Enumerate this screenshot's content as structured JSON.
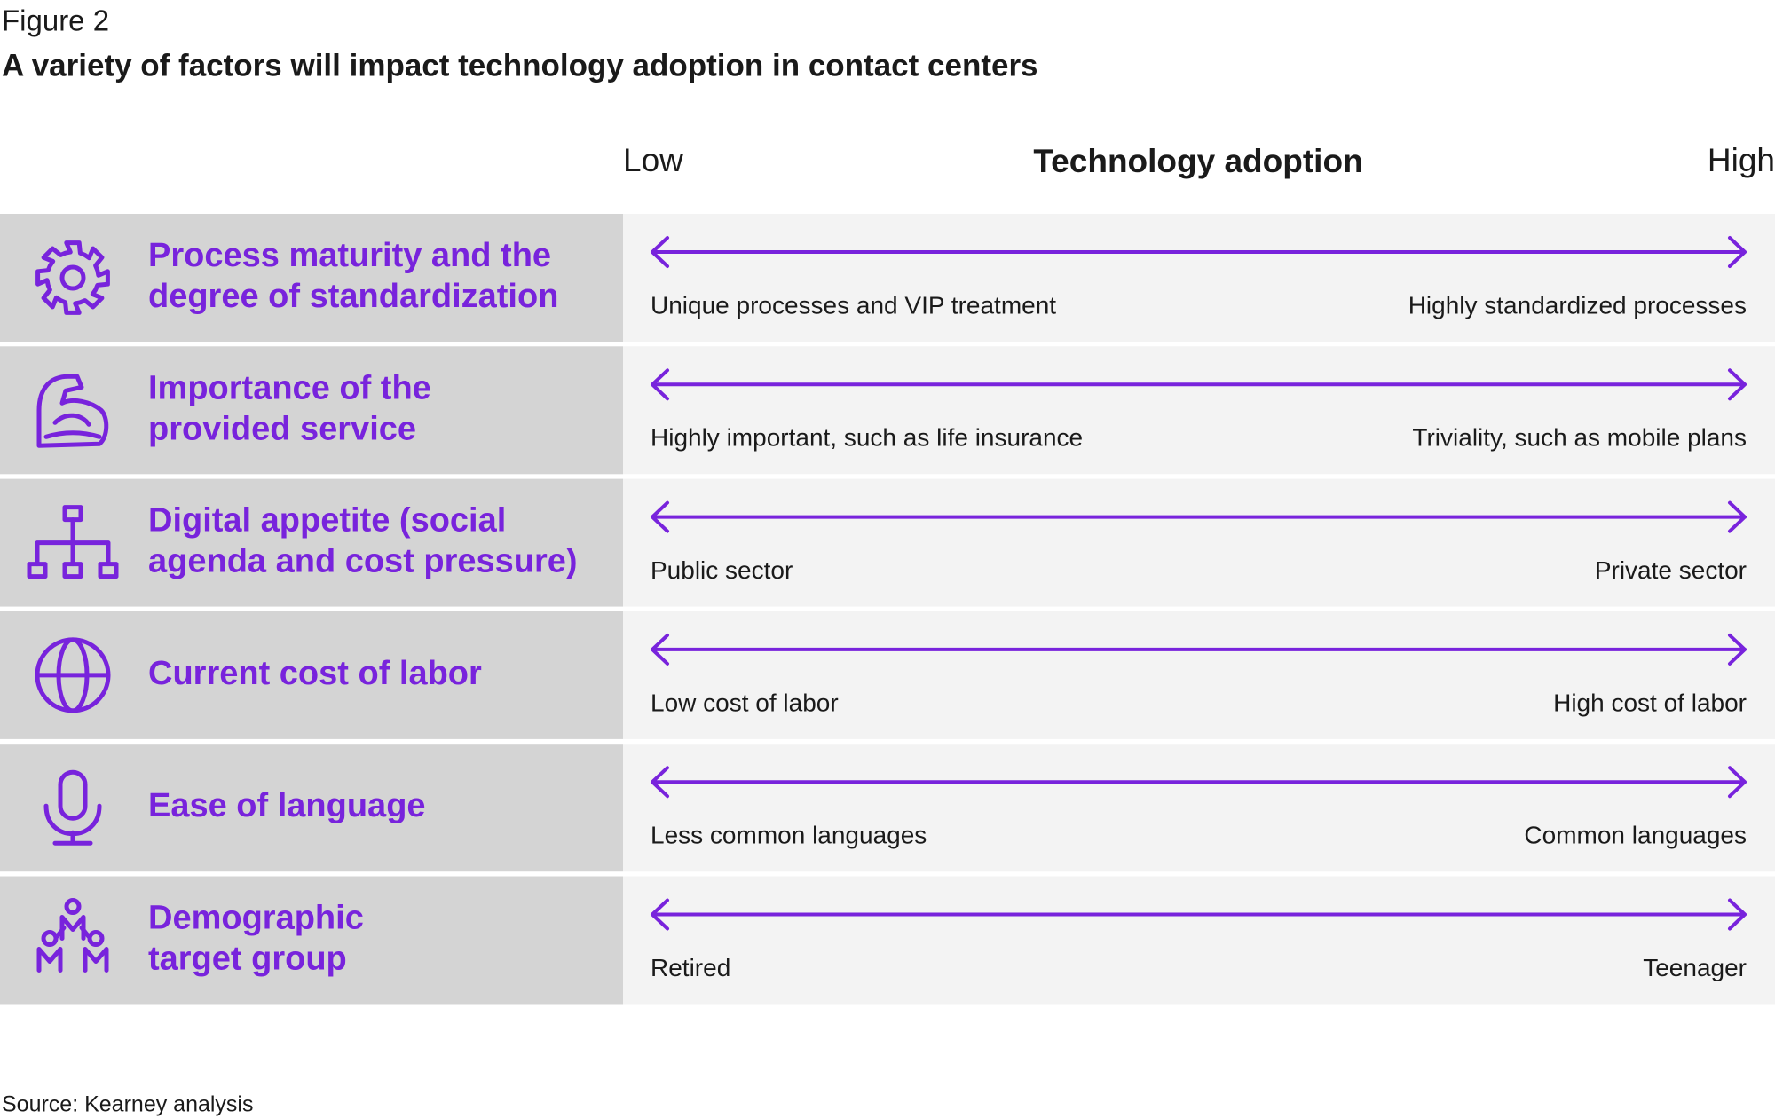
{
  "header": {
    "figure": "Figure 2",
    "title": "A variety of factors will impact technology adoption in contact centers"
  },
  "scale": {
    "low": "Low",
    "title": "Technology adoption",
    "high": "High"
  },
  "rows": [
    {
      "label": [
        "Process maturity and the",
        "degree of standardization"
      ],
      "low": "Unique processes and VIP treatment",
      "high": "Highly standardized processes"
    },
    {
      "label": [
        "Importance of the",
        "provided service"
      ],
      "low": "Highly important, such as life insurance",
      "high": "Triviality, such as mobile plans"
    },
    {
      "label": [
        "Digital appetite (social",
        "agenda and cost pressure)"
      ],
      "low": "Public sector",
      "high": "Private sector"
    },
    {
      "label": [
        "Current cost of labor"
      ],
      "low": "Low cost of labor",
      "high": "High cost of labor"
    },
    {
      "label": [
        "Ease of language"
      ],
      "low": "Less common languages",
      "high": "Common languages"
    },
    {
      "label": [
        "Demographic",
        "target group"
      ],
      "low": "Retired",
      "high": "Teenager"
    }
  ],
  "source": "Source: Kearney analysis"
}
